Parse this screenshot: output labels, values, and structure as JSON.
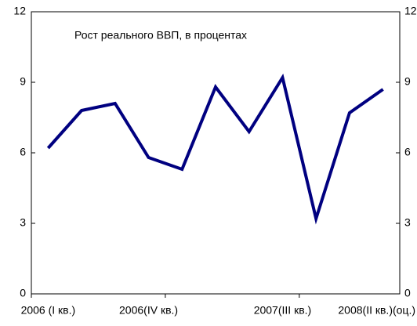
{
  "chart_data": {
    "type": "line",
    "title": "Рост реального ВВП, в процентах",
    "categories": [
      "2006 (I кв.)",
      null,
      null,
      "2006(IV кв.)",
      null,
      null,
      null,
      "2007(III кв.)",
      null,
      null,
      "2008(II кв.)(оц.)"
    ],
    "series": [
      {
        "name": "Рост реального ВВП",
        "color": "#000080",
        "values": [
          6.2,
          7.8,
          8.1,
          5.8,
          5.3,
          8.8,
          6.9,
          9.2,
          3.2,
          7.7,
          8.7
        ]
      }
    ],
    "ylim": [
      0,
      12
    ],
    "yticks": [
      0,
      3,
      6,
      9,
      12
    ],
    "y2lim": [
      0,
      12
    ],
    "y2ticks": [
      0,
      3,
      6,
      9,
      12
    ],
    "grid": false
  }
}
